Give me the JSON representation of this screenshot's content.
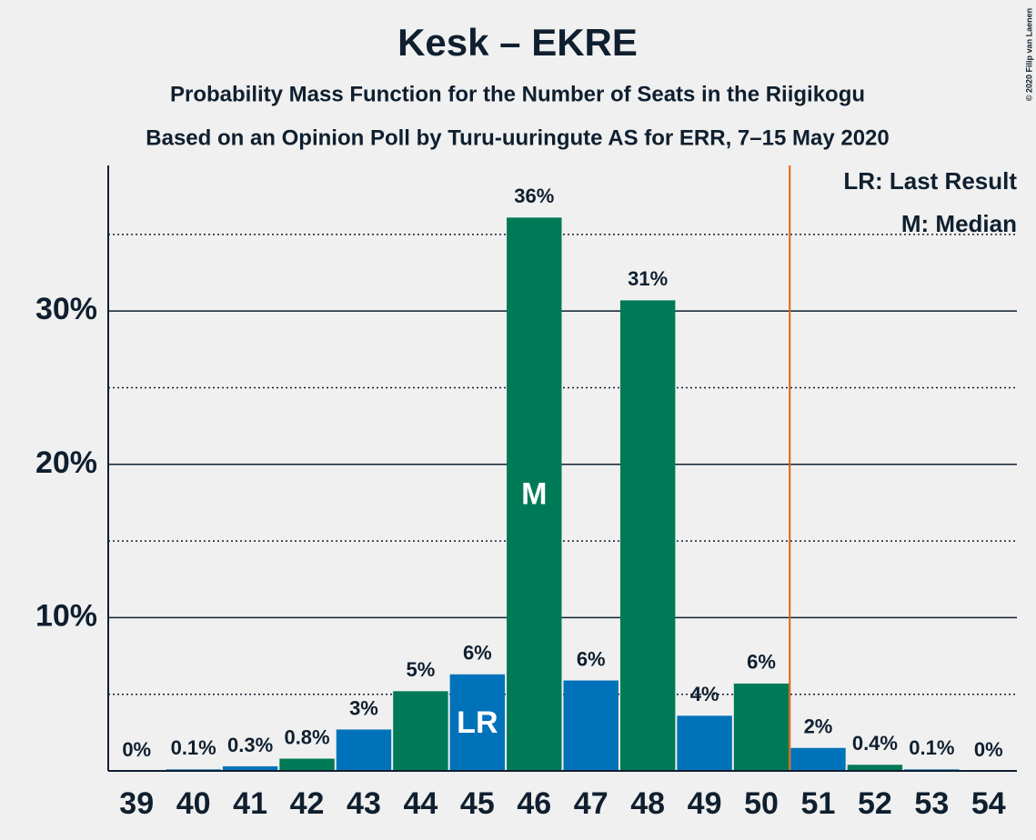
{
  "chart_data": {
    "type": "bar",
    "title": "Kesk – EKRE",
    "subtitle": "Probability Mass Function for the Number of Seats in the Riigikogu",
    "subtitle2": "Based on an Opinion Poll by Turu-uuringute AS for ERR, 7–15 May 2020",
    "copyright": "© 2020 Filip van Laenen",
    "categories": [
      "39",
      "40",
      "41",
      "42",
      "43",
      "44",
      "45",
      "46",
      "47",
      "48",
      "49",
      "50",
      "51",
      "52",
      "53",
      "54"
    ],
    "values": [
      0,
      0.1,
      0.3,
      0.8,
      2.7,
      5.2,
      6.3,
      36.1,
      5.9,
      30.7,
      3.6,
      5.7,
      1.5,
      0.4,
      0.1,
      0
    ],
    "value_labels": [
      "0%",
      "0.1%",
      "0.3%",
      "0.8%",
      "3%",
      "5%",
      "6%",
      "36%",
      "6%",
      "31%",
      "4%",
      "6%",
      "2%",
      "0.4%",
      "0.1%",
      "0%"
    ],
    "colors": [
      "#007a56",
      "#0072b9",
      "#0072b9",
      "#007a56",
      "#0072b9",
      "#007a56",
      "#0072b9",
      "#007a56",
      "#0072b9",
      "#007a56",
      "#0072b9",
      "#007a56",
      "#0072b9",
      "#007a56",
      "#0072b9",
      "#007a56"
    ],
    "ylim": [
      0,
      39.5
    ],
    "yticks": [
      {
        "value": 10,
        "label": "10%"
      },
      {
        "value": 20,
        "label": "20%"
      },
      {
        "value": 30,
        "label": "30%"
      }
    ],
    "minor_yticks": [
      5,
      15,
      25,
      35
    ],
    "grid": true,
    "last_result": {
      "label": "LR",
      "category": "45",
      "legend": "LR: Last Result"
    },
    "median": {
      "label": "M",
      "category": "46",
      "legend": "M: Median"
    },
    "majority": {
      "category": "51",
      "color": "#e0620d"
    }
  }
}
